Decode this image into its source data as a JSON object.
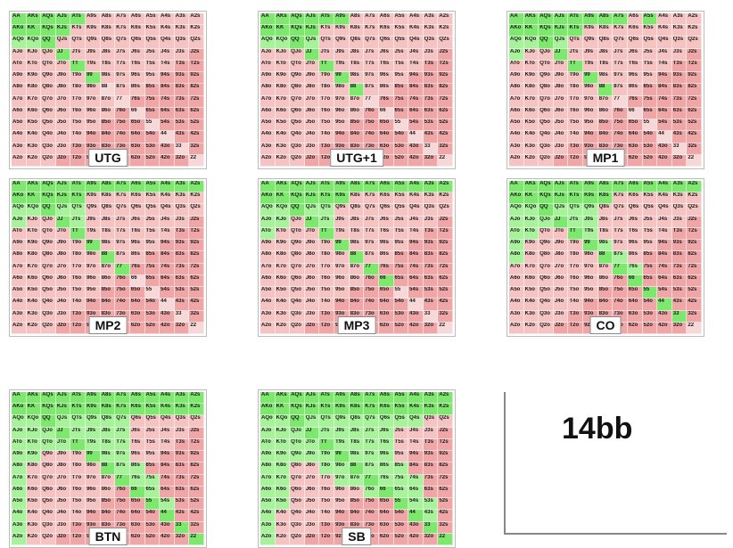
{
  "ranks": [
    "A",
    "K",
    "Q",
    "J",
    "T",
    "9",
    "8",
    "7",
    "6",
    "5",
    "4",
    "3",
    "2"
  ],
  "stack_label": "14bb",
  "colors": {
    "push": "#a7f29a",
    "strong_push": "#7ee86e",
    "fold": "#f6c3c3",
    "deep_fold": "#f0a6a6",
    "pair": "#ffffff"
  },
  "charts": [
    {
      "position": "UTG",
      "push": [
        "AA",
        "AKs",
        "AQs",
        "AJs",
        "ATs",
        "AKo",
        "KK",
        "KQs",
        "KJs",
        "AQo",
        "KQo",
        "QQ",
        "JJ",
        "TT",
        "99"
      ]
    },
    {
      "position": "UTG+1",
      "push": [
        "AA",
        "AKs",
        "AQs",
        "AJs",
        "ATs",
        "A9s",
        "AKo",
        "KK",
        "KQs",
        "KJs",
        "AQo",
        "KQo",
        "QQ",
        "QJs",
        "JJ",
        "TT",
        "99",
        "88"
      ]
    },
    {
      "position": "MP1",
      "push": [
        "AA",
        "AKs",
        "AQs",
        "AJs",
        "ATs",
        "A9s",
        "A8s",
        "A7s",
        "A5s",
        "AKo",
        "KK",
        "KQs",
        "KJs",
        "KTs",
        "AQo",
        "KQo",
        "QQ",
        "QJs",
        "AJo",
        "JJ",
        "TT",
        "99",
        "88"
      ]
    },
    {
      "position": "MP2",
      "push": [
        "AA",
        "AKs",
        "AQs",
        "AJs",
        "ATs",
        "A9s",
        "A8s",
        "A7s",
        "A6s",
        "A5s",
        "A4s",
        "A3s",
        "A2s",
        "AKo",
        "KK",
        "KQs",
        "KJs",
        "KTs",
        "AQo",
        "KQo",
        "QQ",
        "QJs",
        "QTs",
        "AJo",
        "JJ",
        "JTs",
        "TT",
        "99",
        "88",
        "77"
      ]
    },
    {
      "position": "MP3",
      "push": [
        "AA",
        "AKs",
        "AQs",
        "AJs",
        "ATs",
        "A9s",
        "A8s",
        "A7s",
        "A6s",
        "A5s",
        "A4s",
        "A3s",
        "A2s",
        "AKo",
        "KK",
        "KQs",
        "KJs",
        "KTs",
        "K9s",
        "AQo",
        "KQo",
        "QQ",
        "QJs",
        "QTs",
        "AJo",
        "KJo",
        "JJ",
        "JTs",
        "ATo",
        "TT",
        "99",
        "88",
        "77",
        "66"
      ]
    },
    {
      "position": "CO",
      "push": [
        "AA",
        "AKs",
        "AQs",
        "AJs",
        "ATs",
        "A9s",
        "A8s",
        "A7s",
        "A6s",
        "A5s",
        "A4s",
        "A3s",
        "A2s",
        "AKo",
        "KK",
        "KQs",
        "KJs",
        "KTs",
        "K9s",
        "K8s",
        "AQo",
        "KQo",
        "QQ",
        "QJs",
        "QTs",
        "Q9s",
        "AJo",
        "KJo",
        "QJo",
        "JJ",
        "JTs",
        "J9s",
        "ATo",
        "KTo",
        "TT",
        "T9s",
        "A9o",
        "99",
        "98s",
        "A8o",
        "88",
        "87s",
        "77",
        "76s",
        "66",
        "55",
        "44",
        "33"
      ]
    },
    {
      "position": "BTN",
      "push": [
        "AA",
        "AKs",
        "AQs",
        "AJs",
        "ATs",
        "A9s",
        "A8s",
        "A7s",
        "A6s",
        "A5s",
        "A4s",
        "A3s",
        "A2s",
        "AKo",
        "KK",
        "KQs",
        "KJs",
        "KTs",
        "K9s",
        "K8s",
        "K7s",
        "K6s",
        "K5s",
        "K4s",
        "K3s",
        "K2s",
        "AQo",
        "KQo",
        "QQ",
        "QJs",
        "QTs",
        "Q9s",
        "Q8s",
        "Q7s",
        "AJo",
        "KJo",
        "QJo",
        "JJ",
        "JTs",
        "J9s",
        "J8s",
        "J7s",
        "ATo",
        "KTo",
        "QTo",
        "JTo",
        "TT",
        "T9s",
        "T8s",
        "T7s",
        "A9o",
        "K9o",
        "99",
        "98s",
        "97s",
        "A8o",
        "88",
        "87s",
        "86s",
        "A7o",
        "77",
        "76s",
        "75s",
        "A6o",
        "66",
        "65s",
        "A5o",
        "55",
        "54s",
        "A4o",
        "44",
        "A3o",
        "33",
        "A2o",
        "22"
      ]
    },
    {
      "position": "SB",
      "push": [
        "AA",
        "AKs",
        "AQs",
        "AJs",
        "ATs",
        "A9s",
        "A8s",
        "A7s",
        "A6s",
        "A5s",
        "A4s",
        "A3s",
        "A2s",
        "AKo",
        "KK",
        "KQs",
        "KJs",
        "KTs",
        "K9s",
        "K8s",
        "K7s",
        "K6s",
        "K5s",
        "K4s",
        "K3s",
        "K2s",
        "AQo",
        "KQo",
        "QQ",
        "QJs",
        "QTs",
        "Q9s",
        "Q8s",
        "Q7s",
        "Q6s",
        "Q5s",
        "Q4s",
        "AJo",
        "KJo",
        "QJo",
        "JJ",
        "JTs",
        "J9s",
        "J8s",
        "J7s",
        "J6s",
        "ATo",
        "KTo",
        "QTo",
        "JTo",
        "TT",
        "T9s",
        "T8s",
        "T7s",
        "T6s",
        "A9o",
        "K9o",
        "Q9o",
        "J9o",
        "T9o",
        "99",
        "98s",
        "97s",
        "96s",
        "A8o",
        "K8o",
        "T8o",
        "98o",
        "88",
        "87s",
        "86s",
        "85s",
        "A7o",
        "K7o",
        "97o",
        "87o",
        "77",
        "76s",
        "75s",
        "74s",
        "A6o",
        "K6o",
        "76o",
        "66",
        "65s",
        "64s",
        "A5o",
        "K5o",
        "55",
        "54s",
        "53s",
        "A4o",
        "44",
        "43s",
        "A3o",
        "33",
        "A2o",
        "22"
      ]
    }
  ]
}
